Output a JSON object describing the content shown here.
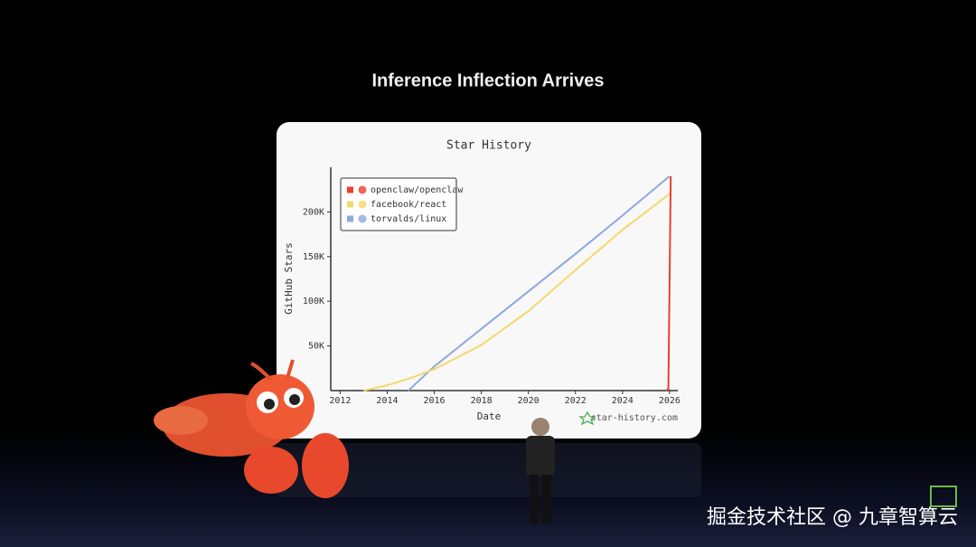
{
  "header": {
    "title": "Inference Inflection Arrives"
  },
  "watermark": "掘金技术社区 @ 九章智算云",
  "chart_data": {
    "type": "line",
    "title": "Star History",
    "xlabel": "Date",
    "ylabel": "GitHub Stars",
    "credit": "star-history.com",
    "legend": "top-left",
    "xlim": [
      2011.6,
      2026.35
    ],
    "xticks": [
      2012,
      2014,
      2016,
      2018,
      2020,
      2022,
      2024,
      2026
    ],
    "ylim": [
      0,
      250000
    ],
    "yticks": [
      {
        "value": 50000,
        "label": "50K"
      },
      {
        "value": 100000,
        "label": "100K"
      },
      {
        "value": 150000,
        "label": "150K"
      },
      {
        "value": 200000,
        "label": "200K"
      }
    ],
    "series": [
      {
        "name": "openclaw/openclaw",
        "color": "#e8412f",
        "x": [
          2025.85,
          2025.95,
          2026.0,
          2026.05
        ],
        "values": [
          0,
          2000,
          120000,
          240000
        ]
      },
      {
        "name": "facebook/react",
        "color": "#f3d96a",
        "x": [
          2013.0,
          2014.0,
          2015.0,
          2016.0,
          2018.0,
          2020.0,
          2022.0,
          2024.0,
          2026.0
        ],
        "values": [
          0,
          6000,
          14000,
          24000,
          51000,
          89000,
          135000,
          180000,
          220000
        ]
      },
      {
        "name": "torvalds/linux",
        "color": "#8fa8e0",
        "x": [
          2014.9,
          2016.0,
          2018.0,
          2020.0,
          2022.0,
          2024.0,
          2026.0
        ],
        "values": [
          0,
          27000,
          69000,
          111000,
          153000,
          196000,
          240000
        ]
      }
    ]
  }
}
